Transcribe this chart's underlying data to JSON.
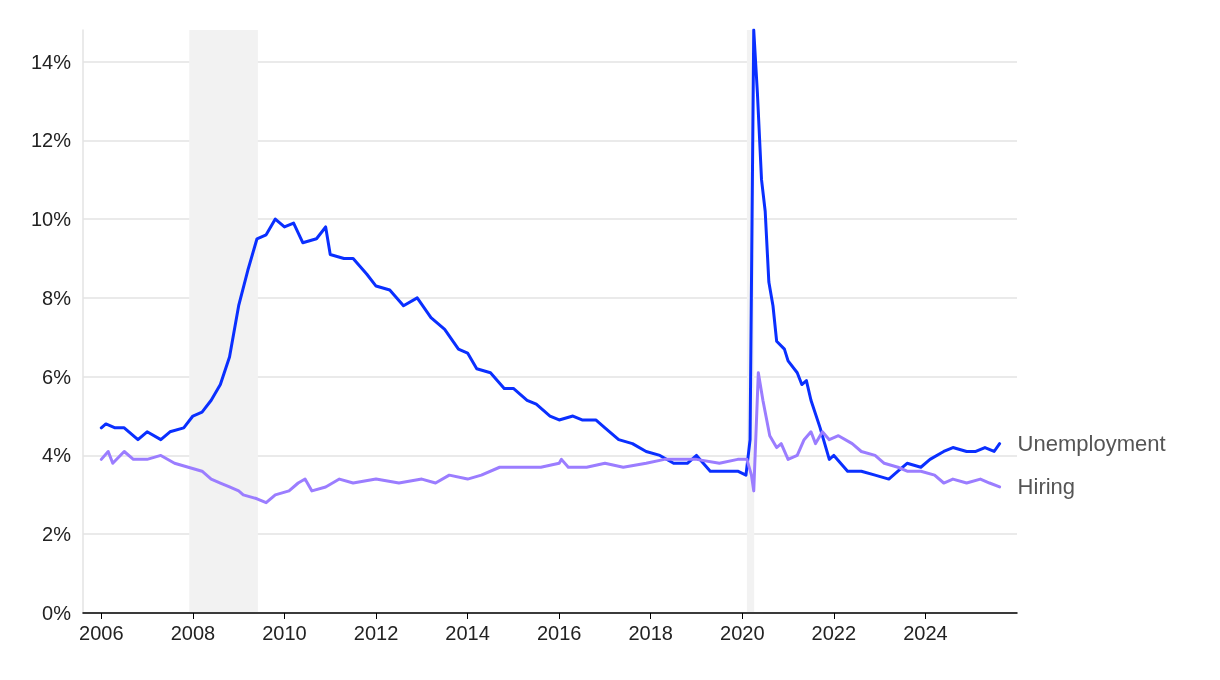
{
  "chart_data": {
    "type": "line",
    "xlim": [
      2005.6,
      2026
    ],
    "xticks": [
      2006,
      2008,
      2010,
      2012,
      2014,
      2016,
      2018,
      2020,
      2022,
      2024
    ],
    "ylim": [
      0,
      14.8
    ],
    "yticks": [
      {
        "value": 0,
        "label": "0%"
      },
      {
        "value": 2,
        "label": "2%"
      },
      {
        "value": 4,
        "label": "4%"
      },
      {
        "value": 6,
        "label": "6%"
      },
      {
        "value": 8,
        "label": "8%"
      },
      {
        "value": 10,
        "label": "10%"
      },
      {
        "value": 12,
        "label": "12%"
      },
      {
        "value": 14,
        "label": "14%"
      }
    ],
    "grid": "y",
    "marker": "none",
    "line_style": "solid",
    "bands": [
      {
        "axis": "x",
        "from": 2007.92,
        "to": 2009.42,
        "color": "#f2f2f2"
      },
      {
        "axis": "x",
        "from": 2020.1,
        "to": 2020.26,
        "color": "#f2f2f2"
      }
    ],
    "series": [
      {
        "name": "Unemployment",
        "color": "#0a2fff",
        "x": [
          2006.0,
          2006.1,
          2006.3,
          2006.5,
          2006.8,
          2007.0,
          2007.3,
          2007.5,
          2007.8,
          2008.0,
          2008.2,
          2008.4,
          2008.6,
          2008.8,
          2009.0,
          2009.2,
          2009.4,
          2009.6,
          2009.8,
          2010.0,
          2010.2,
          2010.4,
          2010.7,
          2010.9,
          2011.0,
          2011.3,
          2011.5,
          2011.8,
          2012.0,
          2012.3,
          2012.6,
          2012.9,
          2013.2,
          2013.5,
          2013.8,
          2014.0,
          2014.2,
          2014.5,
          2014.8,
          2015.0,
          2015.3,
          2015.5,
          2015.8,
          2016.0,
          2016.3,
          2016.5,
          2016.8,
          2017.0,
          2017.3,
          2017.6,
          2017.9,
          2018.2,
          2018.5,
          2018.8,
          2019.0,
          2019.3,
          2019.6,
          2019.9,
          2020.08,
          2020.17,
          2020.25,
          2020.33,
          2020.42,
          2020.5,
          2020.58,
          2020.67,
          2020.75,
          2020.92,
          2021.0,
          2021.2,
          2021.3,
          2021.4,
          2021.5,
          2021.7,
          2021.9,
          2022.0,
          2022.3,
          2022.6,
          2022.9,
          2023.2,
          2023.4,
          2023.6,
          2023.9,
          2024.1,
          2024.4,
          2024.6,
          2024.9,
          2025.1,
          2025.3,
          2025.5,
          2025.62
        ],
        "values": [
          4.7,
          4.8,
          4.7,
          4.7,
          4.4,
          4.6,
          4.4,
          4.6,
          4.7,
          5.0,
          5.1,
          5.4,
          5.8,
          6.5,
          7.8,
          8.7,
          9.5,
          9.6,
          10.0,
          9.8,
          9.9,
          9.4,
          9.5,
          9.8,
          9.1,
          9.0,
          9.0,
          8.6,
          8.3,
          8.2,
          7.8,
          8.0,
          7.5,
          7.2,
          6.7,
          6.6,
          6.2,
          6.1,
          5.7,
          5.7,
          5.4,
          5.3,
          5.0,
          4.9,
          5.0,
          4.9,
          4.9,
          4.7,
          4.4,
          4.3,
          4.1,
          4.0,
          3.8,
          3.8,
          4.0,
          3.6,
          3.6,
          3.6,
          3.5,
          4.4,
          14.8,
          13.2,
          11.0,
          10.2,
          8.4,
          7.8,
          6.9,
          6.7,
          6.4,
          6.1,
          5.8,
          5.9,
          5.4,
          4.7,
          3.9,
          4.0,
          3.6,
          3.6,
          3.5,
          3.4,
          3.6,
          3.8,
          3.7,
          3.9,
          4.1,
          4.2,
          4.1,
          4.1,
          4.2,
          4.1,
          4.3
        ]
      },
      {
        "name": "Hiring",
        "color": "#9b7dff",
        "x": [
          2006.0,
          2006.15,
          2006.25,
          2006.5,
          2006.7,
          2007.0,
          2007.3,
          2007.6,
          2007.9,
          2008.2,
          2008.4,
          2008.6,
          2008.8,
          2009.0,
          2009.1,
          2009.4,
          2009.6,
          2009.8,
          2010.1,
          2010.3,
          2010.45,
          2010.6,
          2010.9,
          2011.2,
          2011.5,
          2012.0,
          2012.5,
          2013.0,
          2013.3,
          2013.6,
          2014.0,
          2014.3,
          2014.7,
          2015.2,
          2015.6,
          2016.0,
          2016.05,
          2016.2,
          2016.6,
          2017.0,
          2017.4,
          2017.9,
          2018.3,
          2018.6,
          2019.0,
          2019.5,
          2019.9,
          2020.1,
          2020.2,
          2020.25,
          2020.35,
          2020.45,
          2020.6,
          2020.75,
          2020.85,
          2021.0,
          2021.2,
          2021.35,
          2021.5,
          2021.6,
          2021.75,
          2021.9,
          2022.1,
          2022.4,
          2022.6,
          2022.9,
          2023.1,
          2023.4,
          2023.6,
          2023.9,
          2024.2,
          2024.4,
          2024.6,
          2024.9,
          2025.2,
          2025.4,
          2025.62
        ],
        "values": [
          3.9,
          4.1,
          3.8,
          4.1,
          3.9,
          3.9,
          4.0,
          3.8,
          3.7,
          3.6,
          3.4,
          3.3,
          3.2,
          3.1,
          3.0,
          2.9,
          2.8,
          3.0,
          3.1,
          3.3,
          3.4,
          3.1,
          3.2,
          3.4,
          3.3,
          3.4,
          3.3,
          3.4,
          3.3,
          3.5,
          3.4,
          3.5,
          3.7,
          3.7,
          3.7,
          3.8,
          3.9,
          3.7,
          3.7,
          3.8,
          3.7,
          3.8,
          3.9,
          3.9,
          3.9,
          3.8,
          3.9,
          3.9,
          3.5,
          3.1,
          6.1,
          5.4,
          4.5,
          4.2,
          4.3,
          3.9,
          4.0,
          4.4,
          4.6,
          4.3,
          4.6,
          4.4,
          4.5,
          4.3,
          4.1,
          4.0,
          3.8,
          3.7,
          3.6,
          3.6,
          3.5,
          3.3,
          3.4,
          3.3,
          3.4,
          3.3,
          3.2
        ]
      }
    ]
  }
}
